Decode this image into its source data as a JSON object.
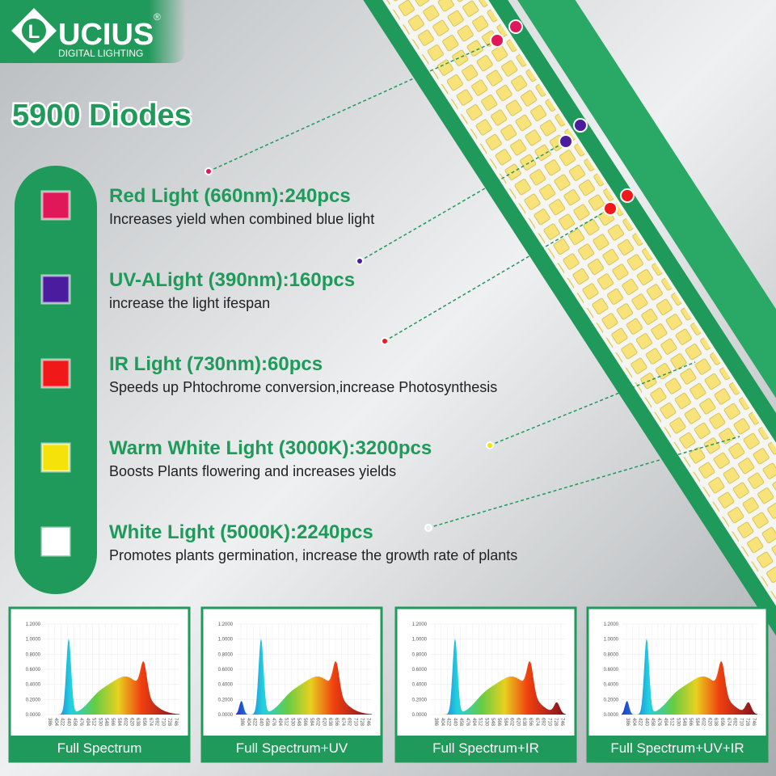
{
  "logo": {
    "letter": "L",
    "name": "UCIUS",
    "registered": "®",
    "tagline": "DIGITAL LIGHTING"
  },
  "title": "5900 Diodes",
  "features": [
    {
      "heading": "Red Light (660nm):240pcs",
      "description": "Increases yield when combined blue light",
      "color": "#e0185a"
    },
    {
      "heading": "UV-ALight (390nm):160pcs",
      "description": "increase the light ifespan",
      "color": "#4b1d9e"
    },
    {
      "heading": "IR Light (730nm):60pcs",
      "description": "Speeds up Phtochrome conversion,increase Photosynthesis",
      "color": "#f01818"
    },
    {
      "heading": "Warm White Light (3000K):3200pcs",
      "description": "Boosts Plants flowering and increases yields",
      "color": "#f5e20a"
    },
    {
      "heading": "White Light (5000K):2240pcs",
      "description": "Promotes plants germination, increase the growth rate of plants",
      "color": "#ffffff"
    }
  ],
  "spectrum": {
    "y_ticks": [
      "1.2000",
      "1.0000",
      "0.8000",
      "0.6000",
      "0.4000",
      "0.2000",
      "0.0000"
    ],
    "x_ticks": [
      "386",
      "404",
      "422",
      "440",
      "458",
      "476",
      "494",
      "512",
      "530",
      "548",
      "566",
      "584",
      "602",
      "620",
      "638",
      "656",
      "674",
      "692",
      "710",
      "728",
      "746"
    ],
    "panels": [
      {
        "label": "Full Spectrum"
      },
      {
        "label": "Full Spectrum+UV"
      },
      {
        "label": "Full Spectrum+IR"
      },
      {
        "label": "Full Spectrum+UV+IR"
      }
    ]
  }
}
